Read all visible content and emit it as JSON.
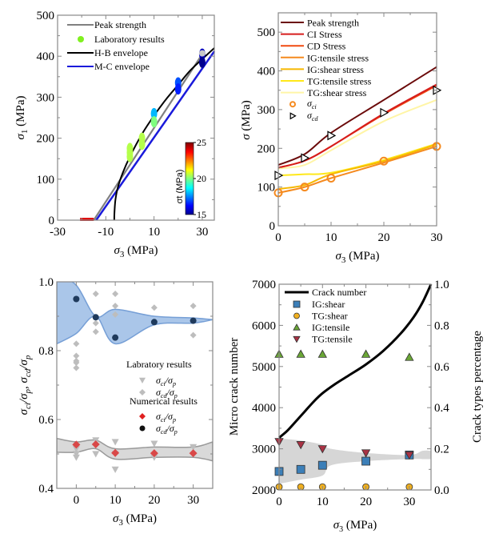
{
  "chart_data": [
    {
      "id": "p1",
      "type": "scatter",
      "xlabel": "σ3  (MPa)",
      "ylabel": "σ1  (MPa)",
      "xlim": [
        -30,
        35
      ],
      "ylim": [
        0,
        500
      ],
      "xticks": [
        -30,
        -10,
        10,
        30
      ],
      "yticks": [
        0,
        100,
        200,
        300,
        400,
        500
      ],
      "legend": [
        "Peak strength",
        "Laboratory results",
        "H-B envelope",
        "M-C envelope"
      ],
      "legend_placement": "top-left",
      "colorbar": {
        "label": "σt (MPa)",
        "min": 15,
        "max": 25,
        "ticks": [
          15,
          20,
          25
        ]
      },
      "series": [
        {
          "name": "Peak strength",
          "kind": "line",
          "color": "#808080",
          "x": [
            -15,
            30
          ],
          "y": [
            0,
            405
          ]
        },
        {
          "name": "M-C envelope",
          "kind": "line",
          "color": "#1a1adb",
          "x": [
            -14,
            35
          ],
          "y": [
            0,
            412
          ]
        },
        {
          "name": "H-B envelope",
          "kind": "curve",
          "color": "#000000",
          "x": [
            -6.5,
            -6.4,
            -6,
            -5,
            -3,
            0,
            5,
            10,
            15,
            20,
            25,
            30,
            35
          ],
          "y": [
            0,
            20,
            50,
            80,
            115,
            155,
            210,
            255,
            295,
            330,
            365,
            393,
            420
          ]
        },
        {
          "name": "Laboratory results",
          "kind": "points",
          "points": [
            {
              "x": 0,
              "y": 175,
              "ct": 20.5
            },
            {
              "x": 0,
              "y": 165,
              "ct": 20.5
            },
            {
              "x": 0,
              "y": 155,
              "ct": 20.5
            },
            {
              "x": 5,
              "y": 200,
              "ct": 20.5
            },
            {
              "x": 5,
              "y": 185,
              "ct": 20.5
            },
            {
              "x": 10,
              "y": 260,
              "ct": 18
            },
            {
              "x": 10,
              "y": 240,
              "ct": 20
            },
            {
              "x": 20,
              "y": 335,
              "ct": 17
            },
            {
              "x": 20,
              "y": 320,
              "ct": 16.5
            },
            {
              "x": 30,
              "y": 405,
              "ct": 15.5
            },
            {
              "x": 30,
              "y": 385,
              "ct": 15
            }
          ]
        },
        {
          "name": "Tensile points",
          "kind": "points",
          "points": [
            {
              "x": -20,
              "y": 0,
              "ct": 25
            },
            {
              "x": -19,
              "y": 0,
              "ct": 25
            },
            {
              "x": -18,
              "y": 0,
              "ct": 25
            },
            {
              "x": -17,
              "y": 0,
              "ct": 25
            },
            {
              "x": -16,
              "y": 0,
              "ct": 25
            }
          ]
        }
      ]
    },
    {
      "id": "p2",
      "type": "line",
      "xlabel": "σ3  (MPa)",
      "ylabel": "σ  (MPa)",
      "xlim": [
        0,
        30
      ],
      "ylim": [
        0,
        550
      ],
      "xticks": [
        0,
        10,
        20,
        30
      ],
      "yticks": [
        0,
        100,
        200,
        300,
        400,
        500
      ],
      "legend_placement": "top-left",
      "x": [
        0,
        5,
        10,
        20,
        30
      ],
      "series": [
        {
          "name": "Peak strength",
          "color": "#6b0a0a",
          "values": [
            157,
            185,
            240,
            325,
            410
          ]
        },
        {
          "name": "CI Stress",
          "color": "#d61c1c",
          "values": [
            150,
            168,
            205,
            290,
            365
          ]
        },
        {
          "name": "CD Stress",
          "color": "#f04a10",
          "values": [
            150,
            168,
            205,
            288,
            362
          ]
        },
        {
          "name": "IG:tensile stress",
          "color": "#f58a1f",
          "values": [
            85,
            100,
            123,
            163,
            205
          ]
        },
        {
          "name": "IG:shear stress",
          "color": "#f6b800",
          "values": [
            95,
            105,
            133,
            167,
            210
          ]
        },
        {
          "name": "TG:tensile stress",
          "color": "#ffe81a",
          "values": [
            130,
            133,
            137,
            170,
            212
          ]
        },
        {
          "name": "TG:shear stress",
          "color": "#fff5a6",
          "values": [
            148,
            157,
            195,
            270,
            325
          ]
        }
      ],
      "markers": [
        {
          "name": "σci",
          "symbol": "circle",
          "color": "#f58a1f",
          "x": [
            0,
            5,
            10,
            20,
            30
          ],
          "y": [
            85,
            100,
            123,
            167,
            205
          ]
        },
        {
          "name": "σcd",
          "symbol": "triangle-right",
          "color": "#000000",
          "x": [
            0,
            5,
            10,
            20,
            30
          ],
          "y": [
            130,
            175,
            233,
            292,
            350
          ]
        }
      ]
    },
    {
      "id": "p3",
      "type": "scatter",
      "xlabel": "σ3  (MPa)",
      "ylabel": "σci/σp, σcd/σp",
      "xlim": [
        -5,
        35
      ],
      "ylim": [
        0.4,
        1.0
      ],
      "xticks": [
        0,
        10,
        20,
        30
      ],
      "yticks": [
        0.4,
        0.6,
        0.8,
        1.0
      ],
      "legend_placement": "center-right",
      "legend": {
        "lab_title": "Labratory results",
        "lab_items": [
          "σci/σp",
          "σcd/σp"
        ],
        "num_title": "Numerical results",
        "num_items": [
          "σci/σp",
          "σcd/σp"
        ]
      },
      "band_cd": {
        "x": [
          -5,
          0,
          5,
          10,
          20,
          30,
          35
        ],
        "upper": [
          1.02,
          0.99,
          0.9,
          0.92,
          0.9,
          0.895,
          0.89
        ],
        "lower": [
          0.82,
          0.85,
          0.9,
          0.82,
          0.875,
          0.88,
          0.89
        ]
      },
      "band_ci": {
        "x": [
          -5,
          0,
          5,
          10,
          20,
          30,
          35
        ],
        "upper": [
          0.545,
          0.535,
          0.54,
          0.515,
          0.52,
          0.52,
          0.535
        ],
        "lower": [
          0.505,
          0.505,
          0.515,
          0.485,
          0.49,
          0.49,
          0.48
        ]
      },
      "lab_ci": [
        {
          "x": 0,
          "y": 0.515
        },
        {
          "x": 0,
          "y": 0.5
        },
        {
          "x": 0,
          "y": 0.49
        },
        {
          "x": 5,
          "y": 0.54
        },
        {
          "x": 5,
          "y": 0.5
        },
        {
          "x": 10,
          "y": 0.535
        },
        {
          "x": 10,
          "y": 0.455
        },
        {
          "x": 10,
          "y": 0.5
        },
        {
          "x": 20,
          "y": 0.53
        },
        {
          "x": 20,
          "y": 0.49
        },
        {
          "x": 30,
          "y": 0.52
        }
      ],
      "lab_cd": [
        {
          "x": 0,
          "y": 0.82
        },
        {
          "x": 0,
          "y": 0.785
        },
        {
          "x": 0,
          "y": 0.77
        },
        {
          "x": 0,
          "y": 0.765
        },
        {
          "x": 0,
          "y": 0.75
        },
        {
          "x": 5,
          "y": 0.965
        },
        {
          "x": 5,
          "y": 0.88
        },
        {
          "x": 5,
          "y": 0.855
        },
        {
          "x": 10,
          "y": 0.965
        },
        {
          "x": 10,
          "y": 0.93
        },
        {
          "x": 10,
          "y": 0.905
        },
        {
          "x": 20,
          "y": 0.925
        },
        {
          "x": 30,
          "y": 0.93
        },
        {
          "x": 30,
          "y": 0.845
        }
      ],
      "num_ci": [
        {
          "x": 0,
          "y": 0.527
        },
        {
          "x": 5,
          "y": 0.528
        },
        {
          "x": 10,
          "y": 0.503
        },
        {
          "x": 20,
          "y": 0.502
        },
        {
          "x": 30,
          "y": 0.502
        }
      ],
      "num_cd": [
        {
          "x": 0,
          "y": 0.95
        },
        {
          "x": 5,
          "y": 0.897
        },
        {
          "x": 10,
          "y": 0.838
        },
        {
          "x": 20,
          "y": 0.883
        },
        {
          "x": 30,
          "y": 0.887
        }
      ]
    },
    {
      "id": "p4",
      "type": "line",
      "xlabel": "σ3  (MPa)",
      "ylabel": "Micro crack number",
      "ylabel_right": "Crack types percentage",
      "xlim": [
        0,
        35
      ],
      "ylim": [
        2000,
        7000
      ],
      "ylim_right": [
        0,
        1.0
      ],
      "xticks": [
        0,
        10,
        20,
        30
      ],
      "yticks": [
        2000,
        3000,
        4000,
        5000,
        6000,
        7000
      ],
      "yticks_right": [
        "0.0",
        "0.2",
        "0.4",
        "0.6",
        "0.8",
        "1.0"
      ],
      "legend_placement": "top-left",
      "crack_number": {
        "name": "Crack number",
        "x": [
          0,
          2,
          5,
          8,
          10,
          13,
          16,
          20,
          24,
          28,
          31,
          33,
          35
        ],
        "y": [
          3270,
          3450,
          3800,
          4150,
          4350,
          4580,
          4780,
          5050,
          5380,
          5800,
          6200,
          6550,
          7000
        ]
      },
      "band": {
        "x": [
          0,
          5,
          10,
          12,
          20,
          30,
          33,
          35
        ],
        "upper": [
          0.25,
          0.24,
          0.22,
          0.2,
          0.18,
          0.17,
          0.19,
          0.19
        ],
        "lower": [
          0.03,
          0.05,
          0.07,
          0.12,
          0.14,
          0.15,
          0.15,
          0.15
        ]
      },
      "markers": [
        {
          "name": "IG:shear",
          "symbol": "square",
          "color": "#3c7fb8",
          "x": [
            0,
            5,
            10,
            20,
            30
          ],
          "y": [
            0.09,
            0.1,
            0.12,
            0.14,
            0.17
          ]
        },
        {
          "name": "TG:shear",
          "symbol": "circle",
          "color": "#f0b020",
          "x": [
            0,
            5,
            10,
            20,
            30
          ],
          "y": [
            0.015,
            0.015,
            0.015,
            0.015,
            0.015
          ]
        },
        {
          "name": "IG:tensile",
          "symbol": "triangle-up",
          "color": "#6aa636",
          "x": [
            0,
            5,
            10,
            20,
            30
          ],
          "y": [
            0.66,
            0.66,
            0.66,
            0.66,
            0.645
          ]
        },
        {
          "name": "TG:tensile",
          "symbol": "triangle-down",
          "color": "#a83244",
          "x": [
            0,
            5,
            10,
            20,
            30
          ],
          "y": [
            0.235,
            0.22,
            0.2,
            0.18,
            0.17
          ]
        }
      ]
    }
  ]
}
